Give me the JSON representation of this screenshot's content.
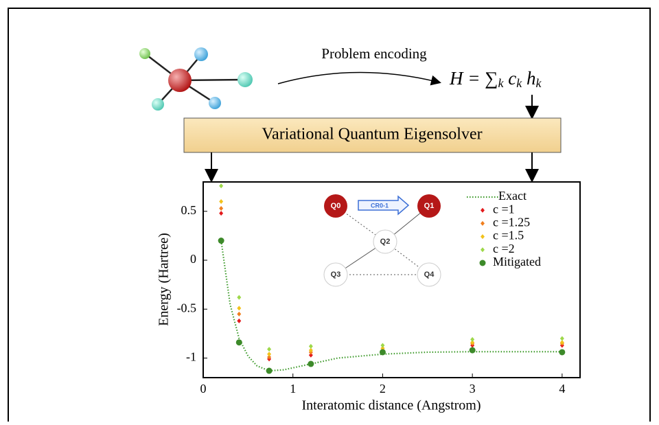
{
  "diagram": {
    "encoding_label": "Problem encoding",
    "formula": {
      "parts": [
        "H = ∑",
        "k",
        " c",
        "k",
        " h",
        "k"
      ]
    },
    "box_label": "Variational Quantum Eigensolver",
    "inset": {
      "nodes": [
        "Q0",
        "Q1",
        "Q2",
        "Q3",
        "Q4"
      ],
      "gate": "CR0-1"
    }
  },
  "chart_data": {
    "type": "scatter",
    "xlabel": "Interatomic distance (Angstrom)",
    "ylabel": "Energy (Hartree)",
    "x": [
      0.2,
      0.4,
      0.735,
      1.2,
      2,
      3,
      4
    ],
    "xlim": [
      0,
      4.2
    ],
    "ylim": [
      -1.2,
      0.8
    ],
    "xticks": [
      0,
      1,
      2,
      3,
      4
    ],
    "yticks": [
      -1,
      -0.5,
      0,
      0.5
    ],
    "legend": "top-right",
    "series": [
      {
        "name": "Exact",
        "color": "#3d9a2a",
        "style": "dotted",
        "x": [
          0.2,
          0.3,
          0.4,
          0.5,
          0.6,
          0.735,
          0.9,
          1.2,
          1.5,
          2,
          2.5,
          3,
          4
        ],
        "values": [
          0.2,
          -0.45,
          -0.8,
          -0.98,
          -1.08,
          -1.13,
          -1.12,
          -1.06,
          -1.0,
          -0.96,
          -0.94,
          -0.935,
          -0.935
        ]
      },
      {
        "name": "c =1",
        "color": "#e31a1c",
        "marker": "diamond",
        "values": [
          0.48,
          -0.62,
          -1.01,
          -0.97,
          -0.92,
          -0.87,
          -0.87
        ]
      },
      {
        "name": "c =1.25",
        "color": "#f07f1f",
        "marker": "diamond",
        "values": [
          0.53,
          -0.55,
          -0.99,
          -0.94,
          -0.9,
          -0.85,
          -0.85
        ]
      },
      {
        "name": "c =1.5",
        "color": "#f2c21c",
        "marker": "diamond",
        "values": [
          0.6,
          -0.49,
          -0.96,
          -0.92,
          -0.9,
          -0.84,
          -0.84
        ]
      },
      {
        "name": "c =2",
        "color": "#9ed84a",
        "marker": "diamond",
        "values": [
          0.76,
          -0.38,
          -0.91,
          -0.88,
          -0.87,
          -0.81,
          -0.8
        ]
      },
      {
        "name": "Mitigated",
        "color": "#3d8a2a",
        "marker": "circle",
        "values": [
          0.2,
          -0.84,
          -1.13,
          -1.06,
          -0.94,
          -0.92,
          -0.94
        ]
      }
    ]
  }
}
